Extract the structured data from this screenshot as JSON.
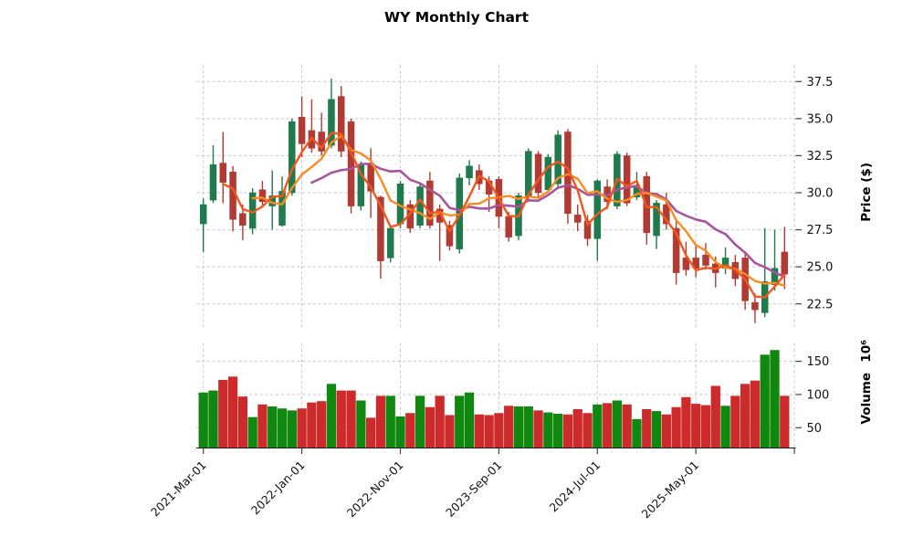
{
  "title": "WY Monthly Chart",
  "price_axis": {
    "label": "Price ($)",
    "ticks": [
      37.5,
      35.0,
      32.5,
      30.0,
      27.5,
      25.0,
      22.5
    ]
  },
  "volume_axis": {
    "label": "Volume",
    "exponent": "10⁶",
    "ticks": [
      150,
      100,
      50
    ]
  },
  "x_axis": {
    "tick_labels": [
      "2021-Mar-01",
      "2022-Jan-01",
      "2022-Nov-01",
      "2023-Sep-01",
      "2024-Jul-01",
      "2025-May-01"
    ],
    "tick_indices": [
      0,
      10,
      20,
      30,
      40,
      50
    ],
    "extra_tick_index": 60
  },
  "colors": {
    "candle_up": "#1f7a4d",
    "candle_down": "#b13a32",
    "volume_up": "#108810",
    "volume_down": "#cd2b2b",
    "grid": "#c9c9c9",
    "tick": "#444444",
    "text": "#111111",
    "spine": "#1a1a1a",
    "ma_fast": "#f2571d",
    "ma_mid": "#fb8b20",
    "ma_slow": "#a8559d"
  },
  "chart_data": {
    "type": "candlestick_with_volume",
    "title": "WY Monthly Chart",
    "ylabel": "Price ($)",
    "volume_label": "Volume 10⁶",
    "price_ylim": [
      20.8,
      38.6
    ],
    "volume_ylim": [
      20,
      177
    ],
    "grid": true,
    "dates": [
      "2021-03-01",
      "2021-04-01",
      "2021-05-01",
      "2021-06-01",
      "2021-07-01",
      "2021-08-01",
      "2021-09-01",
      "2021-10-01",
      "2021-11-01",
      "2021-12-01",
      "2022-01-01",
      "2022-02-01",
      "2022-03-01",
      "2022-04-01",
      "2022-05-01",
      "2022-06-01",
      "2022-07-01",
      "2022-08-01",
      "2022-09-01",
      "2022-10-01",
      "2022-11-01",
      "2022-12-01",
      "2023-01-01",
      "2023-02-01",
      "2023-03-01",
      "2023-04-01",
      "2023-05-01",
      "2023-06-01",
      "2023-07-01",
      "2023-08-01",
      "2023-09-01",
      "2023-10-01",
      "2023-11-01",
      "2023-12-01",
      "2024-01-01",
      "2024-02-01",
      "2024-03-01",
      "2024-04-01",
      "2024-05-01",
      "2024-06-01",
      "2024-07-01",
      "2024-08-01",
      "2024-09-01",
      "2024-10-01",
      "2024-11-01",
      "2024-12-01",
      "2025-01-01",
      "2025-02-01",
      "2025-03-01",
      "2025-04-01",
      "2025-05-01",
      "2025-06-01",
      "2025-07-01",
      "2025-08-01",
      "2025-09-01",
      "2025-10-01",
      "2025-11-01",
      "2025-12-01",
      "2026-01-01",
      "2026-02-01"
    ],
    "open": [
      27.9,
      29.5,
      32.0,
      31.4,
      28.6,
      27.6,
      30.2,
      29.1,
      27.8,
      30.0,
      35.1,
      34.2,
      34.1,
      33.2,
      36.5,
      34.8,
      29.1,
      32.0,
      29.7,
      25.6,
      27.9,
      29.2,
      27.8,
      30.8,
      28.9,
      27.8,
      26.2,
      31.0,
      31.5,
      30.8,
      30.9,
      28.4,
      27.1,
      29.7,
      32.6,
      30.2,
      30.6,
      34.1,
      28.5,
      28.1,
      26.9,
      30.4,
      29.1,
      32.5,
      29.7,
      31.1,
      27.1,
      29.2,
      27.6,
      25.6,
      25.6,
      25.8,
      25.2,
      24.9,
      25.3,
      25.6,
      22.6,
      21.9,
      23.8,
      26.0
    ],
    "high": [
      29.6,
      33.2,
      34.1,
      31.8,
      29.2,
      30.3,
      30.8,
      31.5,
      31.1,
      35.0,
      36.5,
      36.3,
      35.4,
      37.7,
      37.2,
      35.0,
      32.1,
      33.0,
      29.8,
      27.8,
      30.8,
      29.5,
      30.7,
      31.4,
      29.2,
      28.1,
      31.3,
      32.2,
      31.9,
      31.1,
      31.1,
      28.7,
      30.0,
      33.0,
      32.8,
      32.6,
      34.2,
      34.3,
      29.2,
      28.5,
      30.9,
      30.9,
      32.8,
      32.7,
      31.4,
      31.4,
      29.5,
      30.0,
      28.1,
      26.7,
      26.4,
      26.6,
      25.7,
      26.3,
      25.8,
      26.0,
      23.2,
      27.6,
      27.5,
      27.7
    ],
    "low": [
      26.0,
      29.3,
      29.3,
      27.4,
      26.8,
      27.2,
      29.1,
      27.5,
      27.7,
      29.8,
      32.4,
      32.7,
      32.5,
      33.0,
      32.4,
      28.6,
      28.8,
      28.3,
      24.2,
      25.3,
      27.6,
      27.3,
      27.6,
      27.6,
      25.4,
      26.1,
      25.9,
      30.5,
      30.2,
      28.7,
      27.6,
      26.7,
      26.8,
      29.4,
      29.6,
      30.0,
      30.4,
      27.9,
      27.4,
      26.4,
      25.4,
      28.9,
      28.9,
      29.1,
      29.5,
      26.5,
      26.2,
      27.5,
      23.8,
      24.4,
      24.3,
      24.8,
      23.6,
      24.5,
      23.7,
      22.1,
      21.2,
      21.6,
      23.4,
      23.5
    ],
    "close": [
      29.2,
      31.9,
      30.7,
      28.2,
      27.8,
      30.0,
      29.4,
      29.8,
      30.1,
      34.8,
      33.3,
      33.0,
      32.8,
      36.3,
      32.8,
      29.1,
      31.9,
      30.1,
      25.4,
      27.6,
      30.6,
      27.6,
      30.4,
      27.8,
      28.0,
      26.4,
      31.0,
      31.8,
      30.6,
      29.9,
      28.4,
      27.0,
      29.8,
      32.8,
      30.0,
      32.4,
      33.9,
      28.6,
      28.0,
      26.9,
      30.8,
      29.4,
      32.6,
      29.3,
      30.5,
      27.3,
      29.3,
      27.9,
      24.6,
      24.8,
      24.9,
      25.1,
      24.6,
      25.6,
      24.2,
      22.7,
      22.1,
      24.0,
      24.9,
      24.5
    ],
    "volume_millions": [
      103,
      106,
      122,
      127,
      97,
      66,
      85,
      82,
      79,
      76,
      79,
      88,
      90,
      116,
      106,
      106,
      91,
      65,
      98,
      98,
      67,
      72,
      98,
      81,
      98,
      69,
      98,
      103,
      70,
      69,
      72,
      83,
      82,
      82,
      76,
      73,
      71,
      70,
      78,
      72,
      85,
      87,
      91,
      85,
      63,
      78,
      75,
      70,
      81,
      96,
      86,
      84,
      113,
      83,
      98,
      116,
      121,
      160,
      167,
      98
    ],
    "moving_averages": [
      {
        "name": "mav3",
        "period": 3,
        "color": "#f2571d"
      },
      {
        "name": "mav6",
        "period": 6,
        "color": "#fb8b20"
      },
      {
        "name": "mav12",
        "period": 12,
        "color": "#a8559d"
      }
    ],
    "legend": "none"
  }
}
